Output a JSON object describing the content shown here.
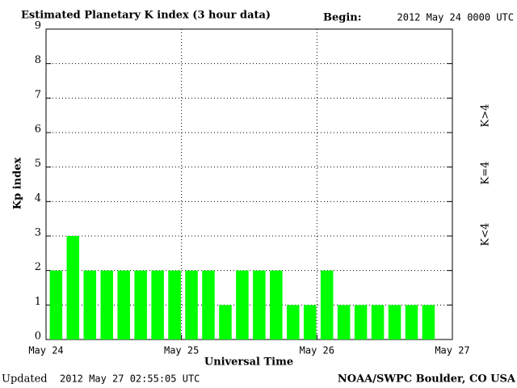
{
  "chart_data": {
    "type": "bar",
    "title": "Estimated Planetary K index (3 hour data)",
    "begin_label": "Begin:",
    "begin": "2012 May 24 0000 UTC",
    "ylabel": "Kp index",
    "xlabel": "Universal Time",
    "updated_label": "Updated",
    "updated": "2012 May 27 02:55:05 UTC",
    "source": "NOAA/SWPC Boulder, CO USA",
    "x": [
      0,
      3,
      6,
      9,
      12,
      15,
      18,
      21,
      24,
      27,
      30,
      33,
      36,
      39,
      42,
      45,
      48,
      51,
      54,
      57,
      60,
      63,
      66
    ],
    "values": [
      2,
      3,
      2,
      2,
      2,
      2,
      2,
      2,
      2,
      2,
      1,
      2,
      2,
      2,
      1,
      1,
      2,
      1,
      1,
      1,
      1,
      1,
      1
    ],
    "bar_width": 3,
    "color": "#00ff00",
    "xlim": [
      0,
      72
    ],
    "xticks": [
      {
        "value": 0,
        "label": "May 24"
      },
      {
        "value": 24,
        "label": "May 25"
      },
      {
        "value": 48,
        "label": "May 26"
      },
      {
        "value": 72,
        "label": "May 27"
      }
    ],
    "ylim": [
      0,
      9
    ],
    "yticks": [
      0,
      1,
      2,
      3,
      4,
      5,
      6,
      7,
      8,
      9
    ],
    "grid": true,
    "legend": [
      {
        "label": "K<4",
        "color": "#22ee22"
      },
      {
        "label": "K=4",
        "color": "#ffcc00"
      },
      {
        "label": "K>4",
        "color": "#ff2a00"
      }
    ]
  }
}
